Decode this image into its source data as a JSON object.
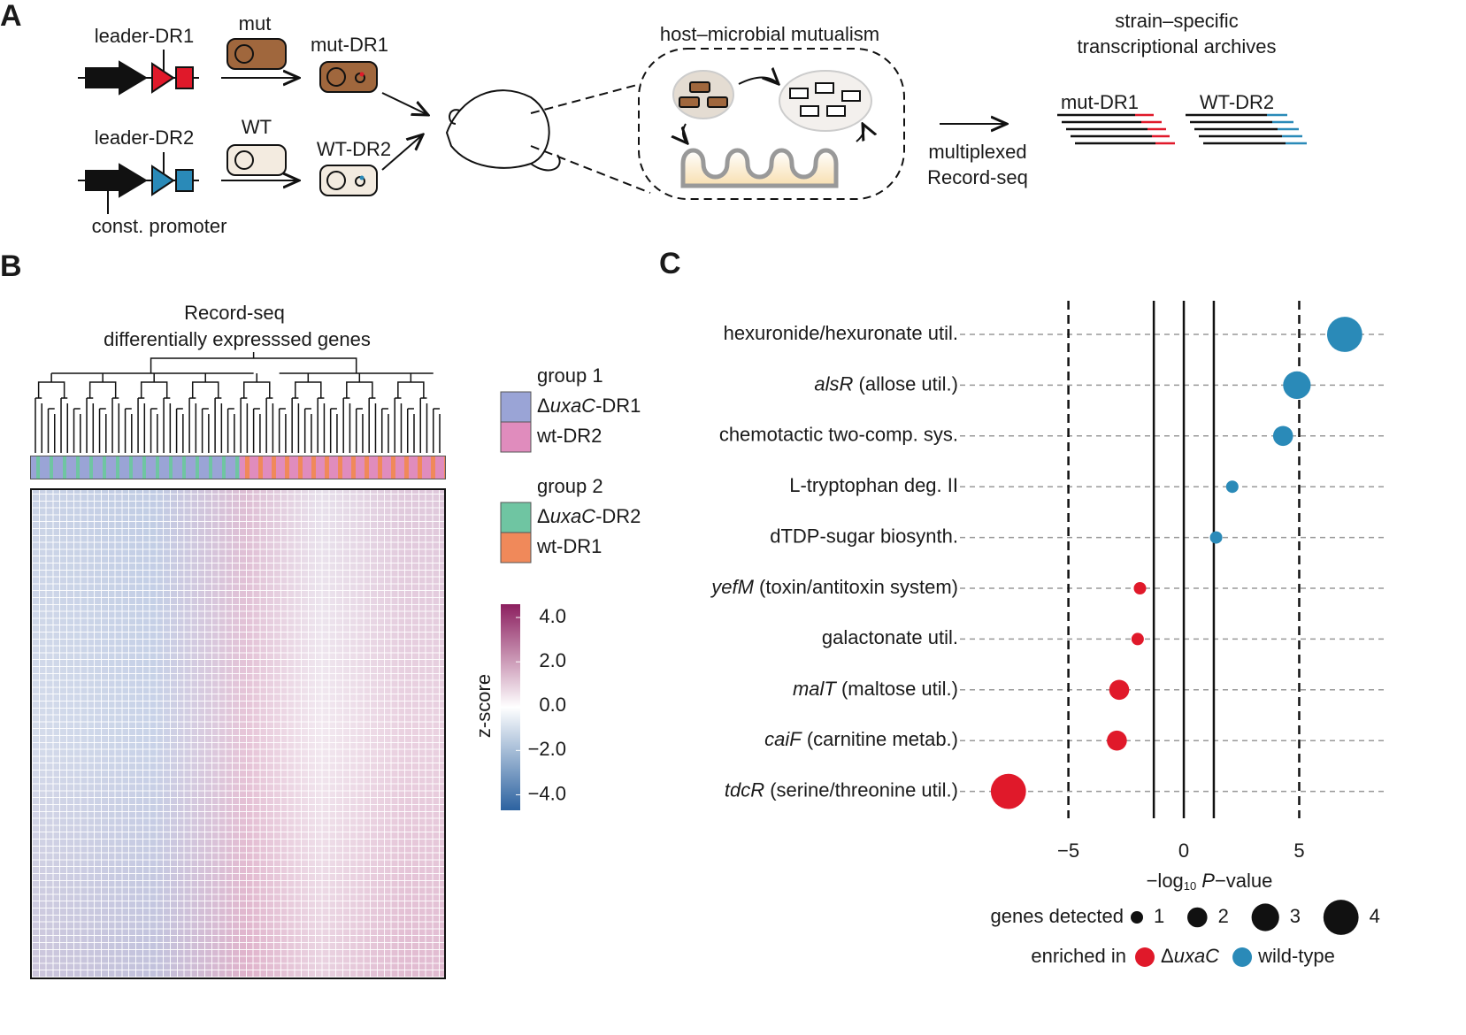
{
  "panel_labels": {
    "a": "A",
    "b": "B",
    "c": "C"
  },
  "panel_a": {
    "leader_dr1": "leader-DR1",
    "leader_dr2": "leader-DR2",
    "const_promoter": "const. promoter",
    "mut": "mut",
    "wt": "WT",
    "mut_dr1": "mut-DR1",
    "wt_dr2": "WT-DR2",
    "mutualism": "host–microbial mutualism",
    "multiplexed": "multiplexed",
    "record_seq": "Record-seq",
    "archives_1": "strain–specific",
    "archives_2": "transcriptional archives",
    "archive_mut": "mut-DR1",
    "archive_wt": "WT-DR2"
  },
  "panel_b": {
    "title_1": "Record-seq",
    "title_2": "differentially expresssed genes",
    "legend": [
      {
        "title": "group 1",
        "entries": [
          {
            "prefix": "Δ",
            "gene": "uxaC",
            "suffix": "-DR1",
            "color": "#9aa4d6"
          },
          {
            "label": "wt-DR2",
            "color": "#e08cbd"
          }
        ]
      },
      {
        "title": "group 2",
        "entries": [
          {
            "prefix": "Δ",
            "gene": "uxaC",
            "suffix": "-DR2",
            "color": "#6fc5a2"
          },
          {
            "label": "wt-DR1",
            "color": "#f0895a"
          }
        ]
      }
    ],
    "colorbar": {
      "title": "z-score",
      "lim": [
        -4.7,
        4.6
      ],
      "colors": [
        "#2c62a0",
        "#ffffff",
        "#8c1f5f"
      ],
      "ticks": [
        {
          "value": 4,
          "label": "4.0"
        },
        {
          "value": 2,
          "label": "2.0"
        },
        {
          "value": 0,
          "label": "0.0"
        },
        {
          "value": -2,
          "label": "−2.0"
        },
        {
          "value": -4,
          "label": "−4.0"
        }
      ]
    }
  },
  "chart_data": {
    "type": "scatter",
    "categories": [
      "hexuronide/hexuronate util.",
      {
        "gene": "alsR",
        "label": "(allose util.)"
      },
      "chemotactic two-comp. sys.",
      "L-tryptophan deg. II",
      "dTDP-sugar biosynth.",
      {
        "gene": "yefM",
        "label": "(toxin/antitoxin system)"
      },
      "galactonate util.",
      {
        "gene": "malT",
        "label": "(maltose util.)"
      },
      {
        "gene": "caiF",
        "label": "(carnitine metab.)"
      },
      {
        "gene": "tdcR",
        "label": "(serine/threonine util.)"
      }
    ],
    "values": [
      6.97,
      4.9,
      4.3,
      2.1,
      1.4,
      -1.9,
      -2.0,
      -2.8,
      -2.9,
      -7.6
    ],
    "sizes": [
      4,
      3,
      2,
      1,
      1,
      1,
      1,
      2,
      2,
      4
    ],
    "enriched": [
      1,
      1,
      1,
      1,
      1,
      0,
      0,
      0,
      0,
      0
    ],
    "xlim": [
      -9.7,
      8.7
    ],
    "xticks": [
      {
        "value": -5,
        "label": "−5"
      },
      0,
      5
    ],
    "x_label": {
      "prefix": "−log",
      "sub": "10",
      "italic": "P",
      "suffix": "−value"
    },
    "reference_lines": {
      "dashed": [
        -5,
        5
      ],
      "solid": [
        -1.3,
        0,
        1.3
      ]
    },
    "grid": true,
    "size_legend": {
      "title": "genes detected",
      "values": [
        1,
        2,
        3,
        4
      ]
    },
    "color_legend": {
      "title": "enriched in",
      "entries": [
        {
          "prefix": "Δ",
          "gene": "uxaC",
          "color": "#e0192a"
        },
        {
          "label": "wild-type",
          "color": "#2a8ab8"
        }
      ]
    }
  }
}
